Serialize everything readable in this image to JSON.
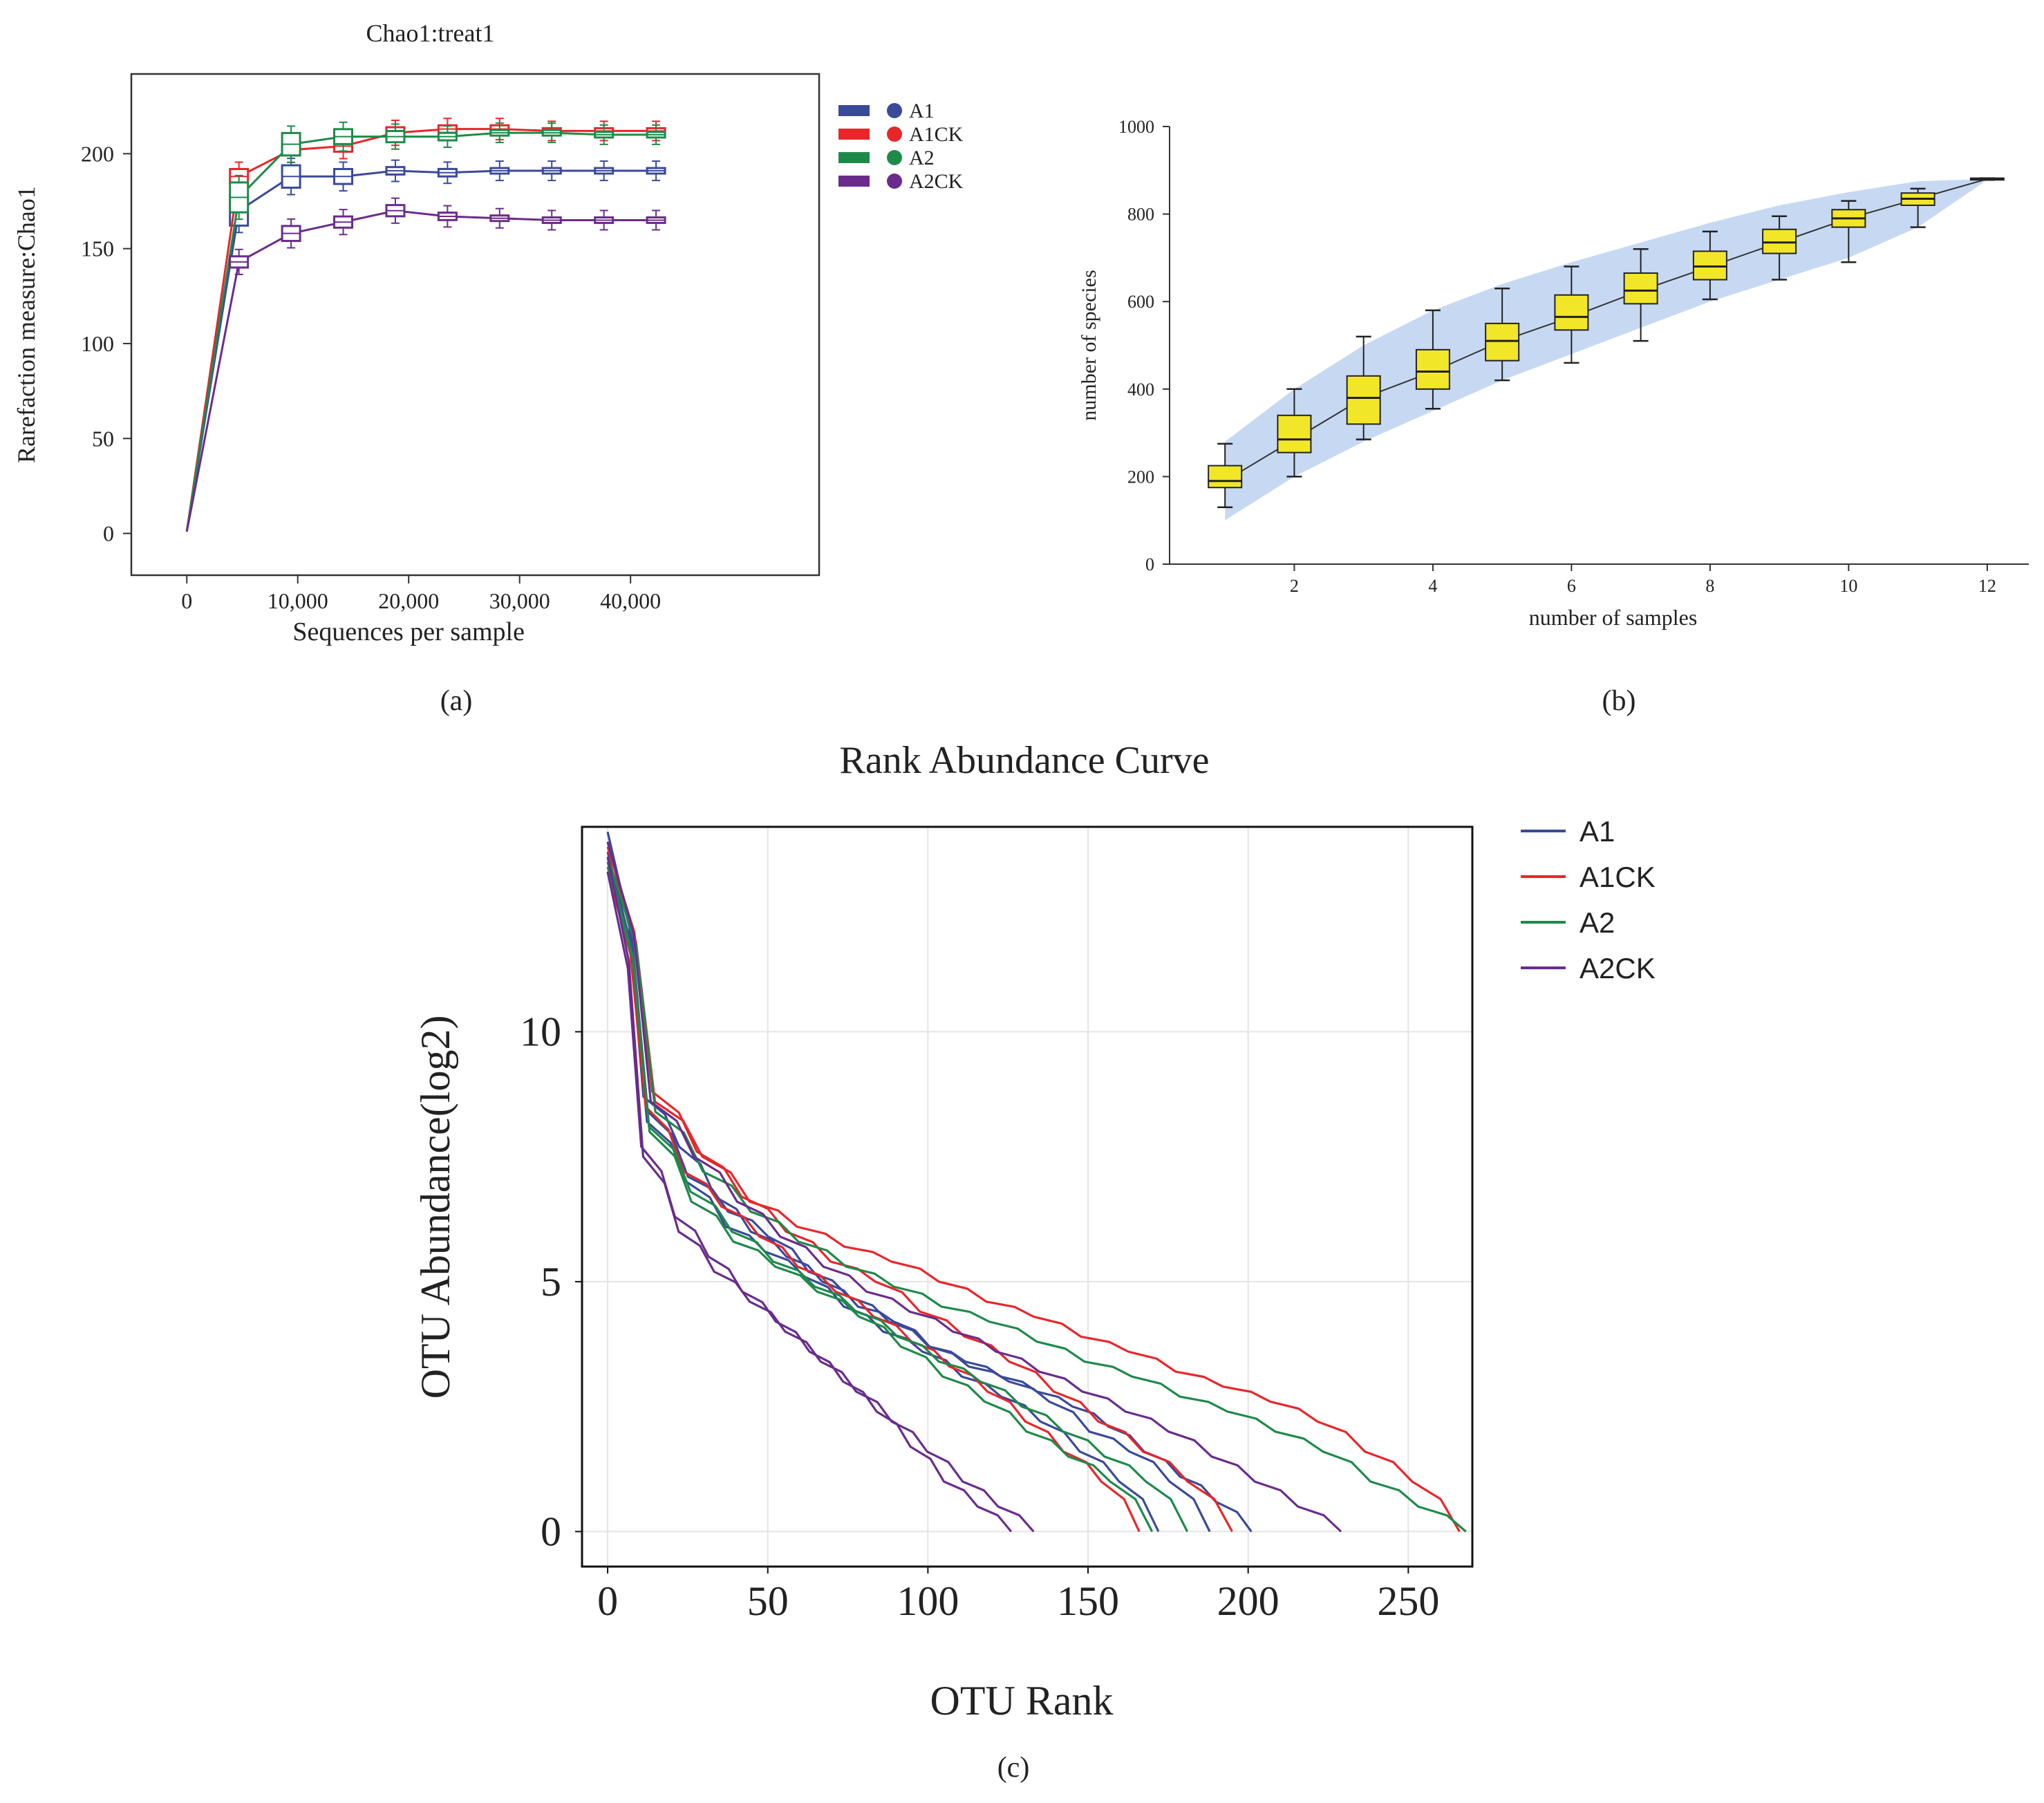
{
  "chart_data": [
    {
      "id": "a",
      "type": "line",
      "panel_label": "(a)",
      "title": "Chao1:treat1",
      "xlabel": "Sequences per sample",
      "ylabel": "Rarefaction measure:Chao1",
      "xlim": [
        -5000,
        57000
      ],
      "ylim": [
        -22,
        242
      ],
      "xticks": [
        {
          "value": 0,
          "label": "0"
        },
        {
          "value": 10000,
          "label": "10,000"
        },
        {
          "value": 20000,
          "label": "20,000"
        },
        {
          "value": 30000,
          "label": "30,000"
        },
        {
          "value": 40000,
          "label": "40,000"
        }
      ],
      "yticks": [
        {
          "value": 0,
          "label": "0"
        },
        {
          "value": 50,
          "label": "50"
        },
        {
          "value": 100,
          "label": "100"
        },
        {
          "value": 150,
          "label": "150"
        },
        {
          "value": 200,
          "label": "200"
        }
      ],
      "x": [
        0,
        4700,
        9400,
        14100,
        18800,
        23500,
        28200,
        32900,
        37600,
        42300
      ],
      "legend_position": "right",
      "series": [
        {
          "name": "A1",
          "color": "#3a4a9a",
          "values": [
            1,
            170,
            188,
            188,
            191,
            190,
            191,
            191,
            191,
            191
          ],
          "box_half": [
            0,
            8,
            6,
            4,
            2,
            2,
            1,
            1,
            1,
            0
          ]
        },
        {
          "name": "A1CK",
          "color": "#e8262a",
          "values": [
            1,
            188,
            202,
            204,
            211,
            213,
            213,
            212,
            212,
            212
          ],
          "box_half": [
            0,
            4,
            3,
            3,
            3,
            2,
            2,
            1,
            1,
            1
          ]
        },
        {
          "name": "A2",
          "color": "#1e8a4a",
          "values": [
            1,
            177,
            205,
            209,
            209,
            209,
            211,
            211,
            210,
            210
          ],
          "box_half": [
            0,
            8,
            6,
            4,
            3,
            2,
            1,
            1,
            1,
            1
          ]
        },
        {
          "name": "A2CK",
          "color": "#6a2c8c",
          "values": [
            1,
            143,
            158,
            164,
            170,
            167,
            166,
            165,
            165,
            165
          ],
          "box_half": [
            0,
            3,
            4,
            3,
            3,
            2,
            1,
            1,
            1,
            1
          ]
        }
      ]
    },
    {
      "id": "b",
      "type": "box",
      "panel_label": "(b)",
      "title": "",
      "xlabel": "number of samples",
      "ylabel": "number of species",
      "xlim": [
        0.2,
        12.6
      ],
      "ylim": [
        0,
        1000
      ],
      "xticks": [
        2,
        4,
        6,
        8,
        10,
        12
      ],
      "yticks": [
        0,
        200,
        400,
        600,
        800,
        1000
      ],
      "boxes": [
        {
          "x": 1,
          "min": 130,
          "q1": 175,
          "median": 190,
          "q3": 225,
          "max": 275
        },
        {
          "x": 2,
          "min": 200,
          "q1": 255,
          "median": 285,
          "q3": 340,
          "max": 400
        },
        {
          "x": 3,
          "min": 285,
          "q1": 320,
          "median": 380,
          "q3": 430,
          "max": 520
        },
        {
          "x": 4,
          "min": 355,
          "q1": 400,
          "median": 440,
          "q3": 490,
          "max": 580
        },
        {
          "x": 5,
          "min": 420,
          "q1": 465,
          "median": 510,
          "q3": 550,
          "max": 630
        },
        {
          "x": 6,
          "min": 460,
          "q1": 535,
          "median": 565,
          "q3": 615,
          "max": 680
        },
        {
          "x": 7,
          "min": 510,
          "q1": 595,
          "median": 625,
          "q3": 665,
          "max": 720
        },
        {
          "x": 8,
          "min": 605,
          "q1": 650,
          "median": 680,
          "q3": 715,
          "max": 760
        },
        {
          "x": 9,
          "min": 650,
          "q1": 710,
          "median": 735,
          "q3": 765,
          "max": 795
        },
        {
          "x": 10,
          "min": 690,
          "q1": 770,
          "median": 790,
          "q3": 810,
          "max": 830
        },
        {
          "x": 11,
          "min": 770,
          "q1": 820,
          "median": 835,
          "q3": 848,
          "max": 858
        },
        {
          "x": 12,
          "min": 878,
          "q1": 878,
          "median": 880,
          "q3": 882,
          "max": 882
        }
      ],
      "band_upper": [
        280,
        400,
        500,
        580,
        640,
        690,
        735,
        780,
        820,
        850,
        875,
        880
      ],
      "band_lower": [
        100,
        200,
        280,
        350,
        420,
        480,
        540,
        600,
        650,
        700,
        770,
        878
      ]
    },
    {
      "id": "c",
      "type": "line",
      "panel_label": "(c)",
      "title": "Rank Abundance Curve",
      "xlabel": "OTU Rank",
      "ylabel": "OTU Abundance(log2)",
      "xlim": [
        -8,
        270
      ],
      "ylim": [
        -0.7,
        14.1
      ],
      "xticks": [
        0,
        50,
        100,
        150,
        200,
        250
      ],
      "yticks": [
        0,
        5,
        10
      ],
      "legend_position": "top-right",
      "series": [
        {
          "name": "A1",
          "color": "#3a4a9a",
          "curves": [
            {
              "end": 201,
              "values": [
                14,
                8.7,
                7.7,
                6.7,
                6.0,
                5.5,
                5.0,
                4.5,
                4.2,
                3.7,
                3.4,
                3.1,
                2.8,
                2.5,
                2.1,
                1.6,
                1.1,
                0.6,
                0.0
              ]
            },
            {
              "end": 188,
              "values": [
                13.8,
                8.4,
                7.1,
                6.4,
                5.9,
                5.2,
                4.7,
                4.2,
                3.7,
                3.3,
                3.0,
                2.6,
                2.0,
                1.6,
                1.0,
                0.0
              ]
            },
            {
              "end": 172,
              "values": [
                13.6,
                8.2,
                7.0,
                6.1,
                5.6,
                5.1,
                4.5,
                4.0,
                3.6,
                3.1,
                2.7,
                2.2,
                1.6,
                1.0,
                0.0
              ]
            }
          ]
        },
        {
          "name": "A1CK",
          "color": "#e8262a",
          "curves": [
            {
              "end": 266,
              "values": [
                13.5,
                8.6,
                7.5,
                6.6,
                6.1,
                5.7,
                5.4,
                5.0,
                4.6,
                4.3,
                3.9,
                3.6,
                3.2,
                2.9,
                2.6,
                2.2,
                1.6,
                1.0,
                0.0
              ]
            },
            {
              "end": 166,
              "values": [
                13.2,
                8.5,
                7.2,
                6.5,
                5.9,
                5.3,
                4.8,
                4.3,
                3.8,
                3.3,
                2.8,
                2.2,
                1.6,
                1.0,
                0.0
              ]
            },
            {
              "end": 195,
              "values": [
                13.7,
                8.8,
                7.6,
                6.7,
                6.0,
                5.4,
                5.0,
                4.4,
                3.9,
                3.4,
                2.8,
                2.2,
                1.6,
                1.0,
                0.0
              ]
            }
          ]
        },
        {
          "name": "A2",
          "color": "#1e8a4a",
          "curves": [
            {
              "end": 268,
              "values": [
                13.5,
                8.4,
                7.2,
                6.4,
                5.8,
                5.3,
                4.9,
                4.5,
                4.2,
                3.8,
                3.4,
                3.1,
                2.7,
                2.4,
                2.0,
                1.6,
                1.0,
                0.5,
                0.0
              ]
            },
            {
              "end": 181,
              "values": [
                13.3,
                8.1,
                6.8,
                6.0,
                5.4,
                4.9,
                4.4,
                3.9,
                3.4,
                3.0,
                2.5,
                2.0,
                1.5,
                1.0,
                0.0
              ]
            },
            {
              "end": 170,
              "values": [
                13.4,
                8.0,
                6.6,
                5.8,
                5.3,
                4.8,
                4.3,
                3.7,
                3.1,
                2.6,
                2.0,
                1.5,
                1.0,
                0.0
              ]
            }
          ]
        },
        {
          "name": "A2CK",
          "color": "#6a2c8c",
          "curves": [
            {
              "end": 229,
              "values": [
                13.8,
                8.6,
                7.5,
                6.6,
                5.9,
                5.3,
                4.8,
                4.4,
                4.0,
                3.6,
                3.2,
                2.8,
                2.4,
                2.0,
                1.5,
                1.0,
                0.5,
                0.0
              ]
            },
            {
              "end": 133,
              "values": [
                13.5,
                7.5,
                6.0,
                5.2,
                4.6,
                4.0,
                3.4,
                2.8,
                2.2,
                1.6,
                1.0,
                0.5,
                0.0
              ]
            },
            {
              "end": 126,
              "values": [
                13.2,
                7.7,
                6.3,
                5.5,
                4.8,
                4.2,
                3.6,
                3.0,
                2.4,
                1.7,
                1.0,
                0.5,
                0.0
              ]
            }
          ]
        }
      ]
    }
  ]
}
